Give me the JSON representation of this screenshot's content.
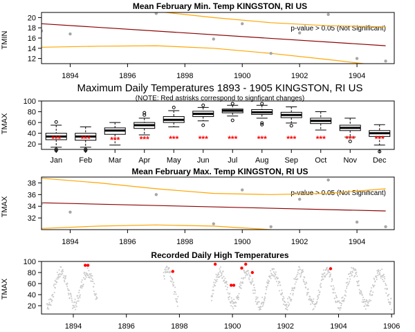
{
  "chart_data": [
    {
      "id": "p1",
      "type": "scatter",
      "title": "Mean February Min. Temp KINGSTON, RI US",
      "ylabel": "TMIN",
      "xlim": [
        1893,
        1905.3
      ],
      "ylim": [
        11,
        21
      ],
      "xticks": [
        1894,
        1896,
        1898,
        1900,
        1902,
        1904
      ],
      "yticks": [
        12,
        14,
        16,
        18,
        20
      ],
      "points": [
        [
          1893.0,
          17.4
        ],
        [
          1894.0,
          16.8
        ],
        [
          1897.0,
          20.8
        ],
        [
          1899.0,
          15.8
        ],
        [
          1900.0,
          18.8
        ],
        [
          1901.0,
          13.0
        ],
        [
          1902.0,
          17.0
        ],
        [
          1903.0,
          20.6
        ],
        [
          1904.0,
          12.0
        ],
        [
          1905.0,
          11.5
        ]
      ],
      "trend": [
        [
          1893.0,
          18.8
        ],
        [
          1905.0,
          14.5
        ]
      ],
      "upper_band": [
        [
          1893.0,
          23.0
        ],
        [
          1897.0,
          21.2
        ],
        [
          1899.0,
          20.0
        ],
        [
          1901.0,
          19.0
        ],
        [
          1903.0,
          18.4
        ],
        [
          1905.0,
          18.2
        ]
      ],
      "lower_band": [
        [
          1893.0,
          14.2
        ],
        [
          1895.0,
          14.4
        ],
        [
          1897.0,
          14.5
        ],
        [
          1899.0,
          14.0
        ],
        [
          1901.0,
          13.0
        ],
        [
          1903.0,
          11.8
        ],
        [
          1905.0,
          10.5
        ]
      ],
      "annotation": "p-value > 0.05 (Not Significant)",
      "colors": {
        "points": "#a6a6a6",
        "trend": "#8b0000",
        "band": "#ffa500"
      }
    },
    {
      "id": "p2",
      "type": "box",
      "title": "Maximum Daily Temperatures 1893 - 1905 KINGSTON, RI US",
      "subtitle": "(NOTE: Red astrisks correspond to signficant changes)",
      "ylabel": "TMAX",
      "ylim": [
        10,
        100
      ],
      "yticks": [
        20,
        40,
        60,
        80,
        100
      ],
      "categories": [
        "Jan",
        "Feb",
        "Mar",
        "Apr",
        "May",
        "Jun",
        "Jul",
        "Aug",
        "Sep",
        "Oct",
        "Nov",
        "Dec"
      ],
      "boxes": [
        {
          "min": 14,
          "q1": 28,
          "med": 34,
          "q3": 40,
          "max": 55,
          "outliers": [
            8,
            10,
            61
          ]
        },
        {
          "min": 14,
          "q1": 27,
          "med": 34,
          "q3": 40,
          "max": 52,
          "outliers": [
            8,
            10
          ]
        },
        {
          "min": 18,
          "q1": 38,
          "med": 45,
          "q3": 50,
          "max": 60,
          "outliers": []
        },
        {
          "min": 37,
          "q1": 49,
          "med": 55,
          "q3": 60,
          "max": 68,
          "outliers": [
            74,
            78
          ]
        },
        {
          "min": 52,
          "q1": 60,
          "med": 65,
          "q3": 71,
          "max": 82,
          "outliers": [
            88
          ]
        },
        {
          "min": 63,
          "q1": 71,
          "med": 76,
          "q3": 81,
          "max": 88,
          "outliers": [
            55,
            92
          ]
        },
        {
          "min": 72,
          "q1": 78,
          "med": 82,
          "q3": 85,
          "max": 92,
          "outliers": [
            64,
            95
          ]
        },
        {
          "min": 68,
          "q1": 75,
          "med": 79,
          "q3": 84,
          "max": 92,
          "outliers": [
            56,
            59,
            95
          ]
        },
        {
          "min": 59,
          "q1": 69,
          "med": 74,
          "q3": 79,
          "max": 89,
          "outliers": [
            54
          ]
        },
        {
          "min": 46,
          "q1": 58,
          "med": 63,
          "q3": 68,
          "max": 80,
          "outliers": []
        },
        {
          "min": 33,
          "q1": 45,
          "med": 50,
          "q3": 55,
          "max": 68,
          "outliers": [
            25
          ]
        },
        {
          "min": 18,
          "q1": 34,
          "med": 40,
          "q3": 45,
          "max": 56,
          "outliers": [
            6
          ]
        }
      ],
      "stars": [
        "***",
        "***",
        "***",
        "***",
        "***",
        "***",
        "***",
        "***",
        "***",
        "***",
        "***",
        "***"
      ],
      "star_values": [
        36,
        36,
        34,
        35,
        36,
        36,
        36,
        36,
        36,
        36,
        36,
        36
      ]
    },
    {
      "id": "p3",
      "type": "scatter",
      "title": "Mean February Max. Temp KINGSTON, RI US",
      "ylabel": "TMAX",
      "xlim": [
        1893,
        1905.3
      ],
      "ylim": [
        30,
        39
      ],
      "xticks": [
        1894,
        1896,
        1898,
        1900,
        1902,
        1904
      ],
      "yticks": [
        32,
        34,
        36,
        38
      ],
      "points": [
        [
          1893.0,
          34.5
        ],
        [
          1894.0,
          33.0
        ],
        [
          1897.0,
          36.0
        ],
        [
          1899.0,
          31.0
        ],
        [
          1900.0,
          36.8
        ],
        [
          1901.0,
          30.5
        ],
        [
          1902.0,
          35.2
        ],
        [
          1903.0,
          38.5
        ],
        [
          1904.0,
          31.3
        ],
        [
          1905.0,
          30.5
        ]
      ],
      "trend": [
        [
          1893.0,
          34.6
        ],
        [
          1905.0,
          33.2
        ]
      ],
      "upper_band": [
        [
          1893.0,
          38.8
        ],
        [
          1895.0,
          38.0
        ],
        [
          1897.0,
          37.0
        ],
        [
          1899.0,
          36.2
        ],
        [
          1901.0,
          36.0
        ],
        [
          1903.0,
          36.2
        ],
        [
          1905.0,
          37.0
        ]
      ],
      "lower_band": [
        [
          1893.0,
          30.2
        ],
        [
          1895.0,
          30.6
        ],
        [
          1897.0,
          30.8
        ],
        [
          1899.0,
          30.6
        ],
        [
          1901.0,
          30.0
        ],
        [
          1903.0,
          29.5
        ],
        [
          1905.0,
          29.0
        ]
      ],
      "annotation": "p-value > 0.05 (Not Significant)",
      "colors": {
        "points": "#a6a6a6",
        "trend": "#8b0000",
        "band": "#ffa500"
      }
    },
    {
      "id": "p4",
      "type": "scatter",
      "title": "Recorded Daily High Temperatures",
      "ylabel": "TMAX",
      "xlim": [
        1892.8,
        1906.1
      ],
      "ylim": [
        5,
        100
      ],
      "xticks": [
        1894,
        1896,
        1898,
        1900,
        1902,
        1904,
        1906
      ],
      "yticks": [
        20,
        40,
        60,
        80,
        100
      ],
      "gaps": [
        [
          1894.9,
          1897.4
        ],
        [
          1897.95,
          1899.2
        ]
      ],
      "season_mean": 52,
      "season_amp": 30,
      "season_noise": 10,
      "season_start": 1893.0,
      "season_end": 1906.0,
      "highlights": [
        [
          1894.45,
          93
        ],
        [
          1894.55,
          93
        ],
        [
          1897.75,
          82
        ],
        [
          1899.35,
          95
        ],
        [
          1899.95,
          57
        ],
        [
          1900.05,
          57
        ],
        [
          1900.35,
          88
        ],
        [
          1900.5,
          95
        ],
        [
          1900.75,
          80
        ],
        [
          1903.7,
          87
        ]
      ],
      "colors": {
        "points": "#c8c8c8",
        "highlight": "#ff0000"
      }
    }
  ]
}
